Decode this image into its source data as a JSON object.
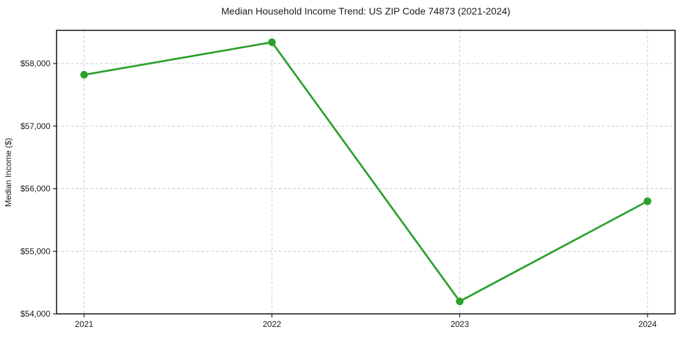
{
  "chart_data": {
    "type": "line",
    "title": "Median Household Income Trend: US ZIP Code 74873 (2021-2024)",
    "xlabel": "",
    "ylabel": "Median Income ($)",
    "categories": [
      "2021",
      "2022",
      "2023",
      "2024"
    ],
    "series": [
      {
        "name": "Median Household Income",
        "values": [
          57820,
          58340,
          54200,
          55800
        ]
      }
    ],
    "ylim": [
      54000,
      58530
    ],
    "yticks": [
      54000,
      55000,
      56000,
      57000,
      58000
    ],
    "ytick_labels": [
      "$54,000",
      "$55,000",
      "$56,000",
      "$57,000",
      "$58,000"
    ],
    "grid": true,
    "grid_style": "dashed",
    "legend": "none",
    "colors": {
      "line": "#2ca02c",
      "marker": "#2ca02c",
      "gridline": "#c9c9c9",
      "frame": "#1a1a1a",
      "background": "#ffffff",
      "text": "#1a1a1a"
    }
  }
}
